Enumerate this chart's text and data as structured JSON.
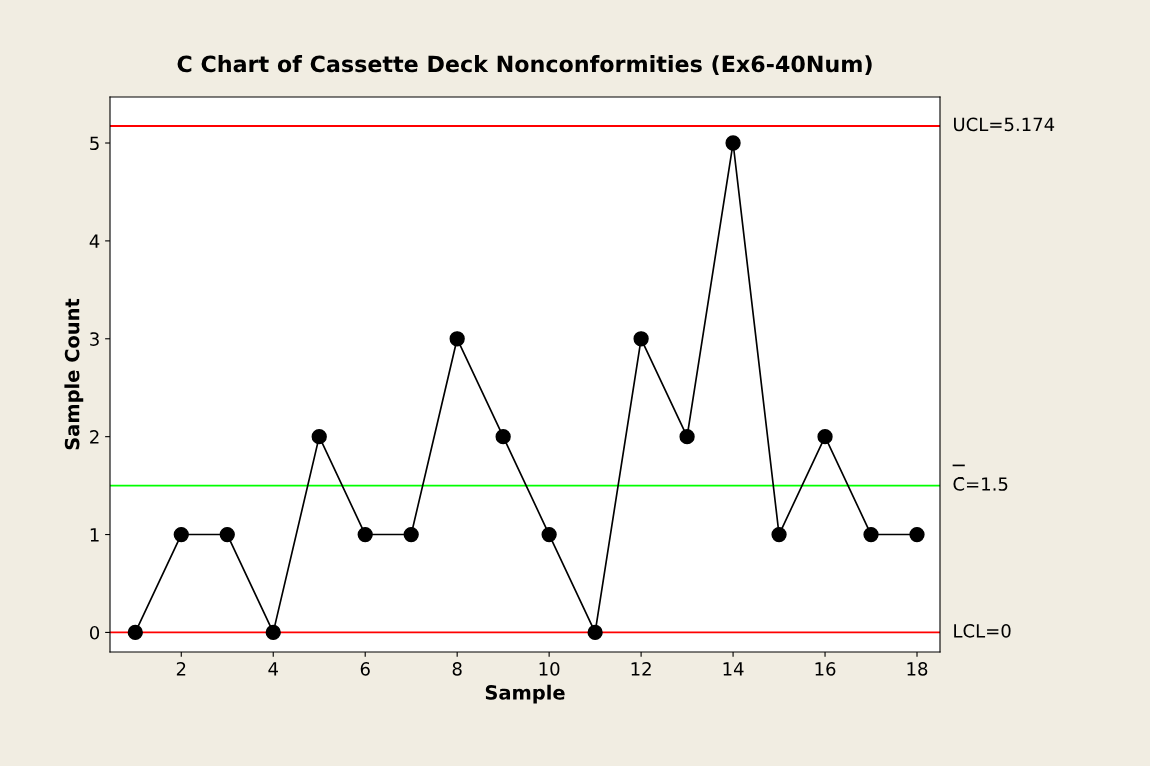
{
  "chart_data": {
    "type": "line",
    "title": "C Chart of Cassette Deck Nonconformities (Ex6-40Num)",
    "xlabel": "Sample",
    "ylabel": "Sample Count",
    "x": [
      1,
      2,
      3,
      4,
      5,
      6,
      7,
      8,
      9,
      10,
      11,
      12,
      13,
      14,
      15,
      16,
      17,
      18
    ],
    "series": [
      {
        "color": "#000000",
        "values": [
          0,
          1,
          1,
          0,
          2,
          1,
          1,
          3,
          2,
          1,
          0,
          3,
          2,
          5,
          1,
          2,
          1,
          1
        ]
      }
    ],
    "marker": "circle",
    "line_style": "solid",
    "grid": false,
    "legend": false,
    "xlim": [
      0.45,
      18.5
    ],
    "xticks": [
      2,
      4,
      6,
      8,
      10,
      12,
      14,
      16,
      18
    ],
    "ylim": [
      -0.2,
      5.47
    ],
    "yticks": [
      0,
      1,
      2,
      3,
      4,
      5
    ],
    "ref_lines": [
      {
        "axis": "y",
        "value": 5.174,
        "label": "UCL=5.174",
        "color": "#ff0000"
      },
      {
        "axis": "y",
        "value": 1.5,
        "label": "C̄=1.5",
        "color": "#00ff00"
      },
      {
        "axis": "y",
        "value": 0,
        "label": "LCL=0",
        "color": "#ff0000"
      }
    ]
  }
}
